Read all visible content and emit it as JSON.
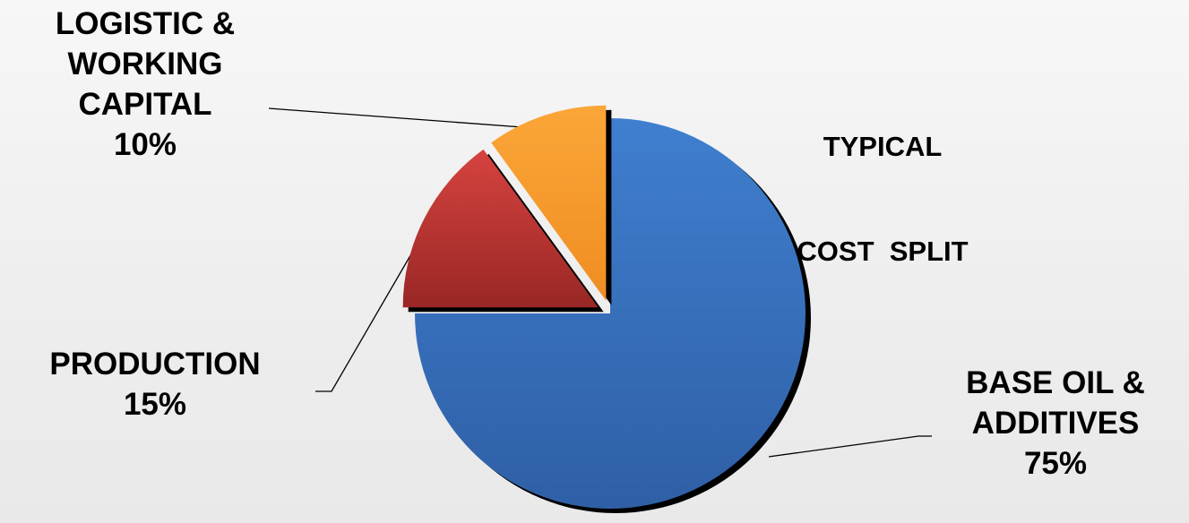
{
  "chart_data": {
    "type": "pie",
    "title": "TYPICAL\nCOST  SPLIT",
    "title_lines": [
      "TYPICAL",
      "COST  SPLIT"
    ],
    "slices": [
      {
        "key": "base",
        "label_lines": [
          "BASE OIL &",
          "ADDITIVES"
        ],
        "percent_label": "75%",
        "value": 75,
        "color": "#3a73c4",
        "exploded": false
      },
      {
        "key": "production",
        "label_lines": [
          "PRODUCTION"
        ],
        "percent_label": "15%",
        "value": 15,
        "color": "#b8302e",
        "exploded": true
      },
      {
        "key": "logistic",
        "label_lines": [
          "LOGISTIC &",
          "WORKING",
          "CAPITAL"
        ],
        "percent_label": "10%",
        "value": 10,
        "color": "#f59a2c",
        "exploded": true
      }
    ],
    "legend": "none",
    "grid": false
  }
}
